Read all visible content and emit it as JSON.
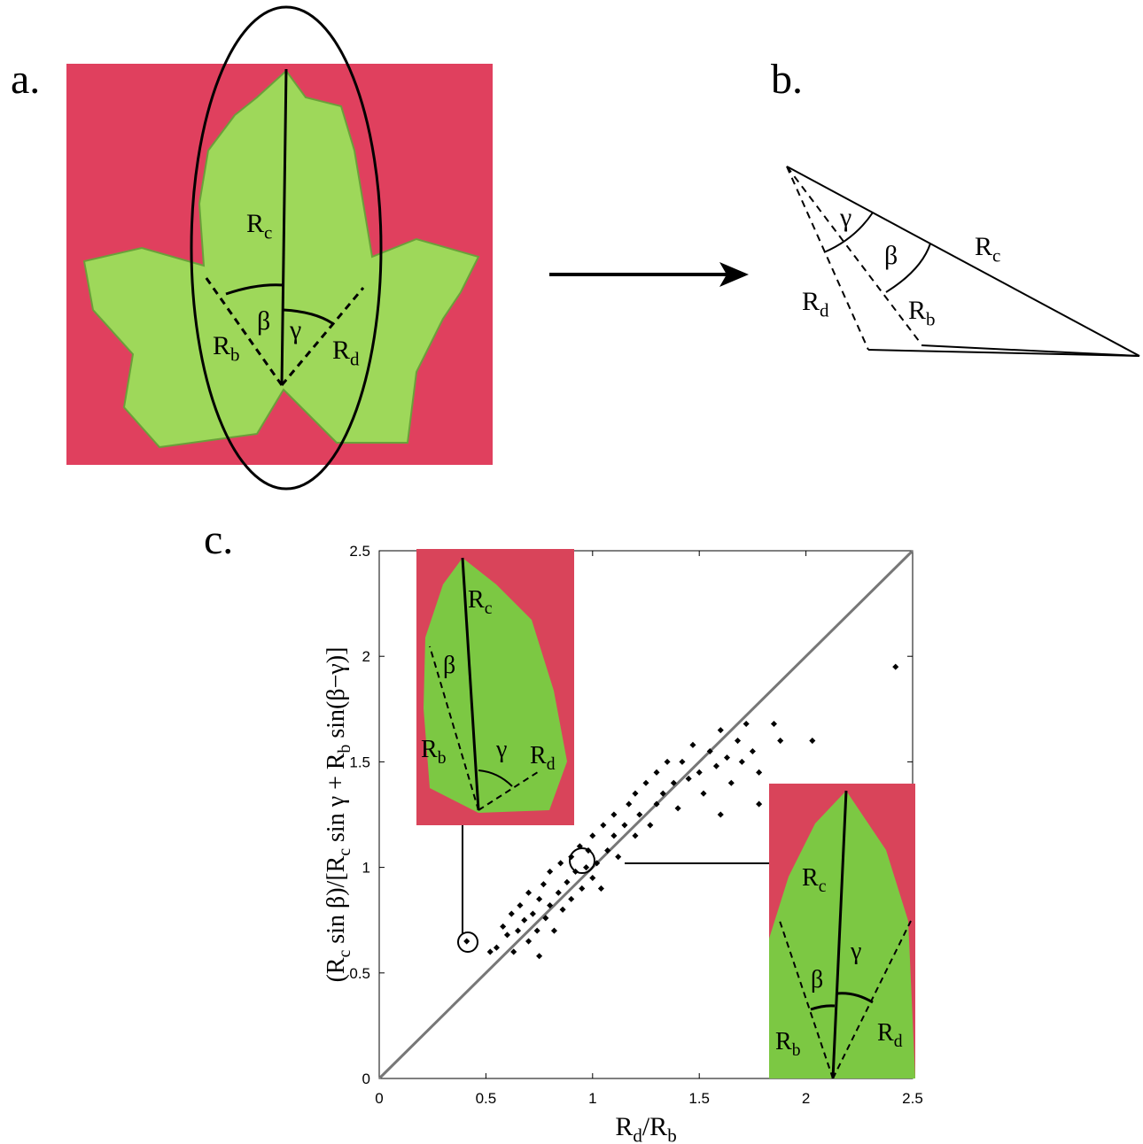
{
  "panel_labels": [
    "a.",
    "b.",
    "c."
  ],
  "panel_a": {
    "labels": [
      {
        "base": "R",
        "sub": "c"
      },
      {
        "base": "β"
      },
      {
        "base": "γ"
      },
      {
        "base": "R",
        "sub": "b"
      },
      {
        "base": "R",
        "sub": "d"
      }
    ]
  },
  "panel_b": {
    "labels": [
      {
        "base": "γ"
      },
      {
        "base": "β"
      },
      {
        "base": "R",
        "sub": "c"
      },
      {
        "base": "R",
        "sub": "d"
      },
      {
        "base": "R",
        "sub": "b"
      }
    ]
  },
  "inset_left": {
    "labels": [
      {
        "base": "R",
        "sub": "c"
      },
      {
        "base": "β"
      },
      {
        "base": "R",
        "sub": "b"
      },
      {
        "base": "γ"
      },
      {
        "base": "R",
        "sub": "d"
      }
    ]
  },
  "inset_right": {
    "labels": [
      {
        "base": "R",
        "sub": "c"
      },
      {
        "base": "γ"
      },
      {
        "base": "β"
      },
      {
        "base": "R",
        "sub": "b"
      },
      {
        "base": "R",
        "sub": "d"
      }
    ]
  },
  "chart_data": {
    "type": "scatter",
    "x_label_parts": [
      "R",
      "d",
      "/R",
      "b"
    ],
    "y_label_parts": [
      "(R",
      "c",
      " sin β)/[R",
      "c",
      " sin γ + R",
      "b",
      " sin(β−γ)]"
    ],
    "x": [
      0.55,
      0.58,
      0.6,
      0.62,
      0.63,
      0.65,
      0.66,
      0.68,
      0.7,
      0.7,
      0.72,
      0.74,
      0.75,
      0.77,
      0.78,
      0.8,
      0.8,
      0.82,
      0.84,
      0.85,
      0.86,
      0.88,
      0.9,
      0.9,
      0.92,
      0.94,
      0.95,
      0.97,
      0.98,
      1.0,
      1.0,
      1.02,
      1.04,
      1.05,
      1.07,
      1.1,
      1.1,
      1.12,
      1.15,
      1.17,
      1.2,
      1.2,
      1.22,
      1.25,
      1.27,
      1.3,
      1.3,
      1.33,
      1.35,
      1.38,
      1.4,
      1.42,
      1.45,
      1.47,
      1.5,
      1.52,
      1.55,
      1.58,
      1.6,
      1.63,
      1.65,
      1.68,
      1.7,
      1.72,
      1.75,
      1.78,
      1.78,
      1.85,
      1.88,
      2.03,
      2.42,
      0.52,
      0.41,
      1.6,
      0.75
    ],
    "values": [
      0.62,
      0.72,
      0.68,
      0.78,
      0.6,
      0.7,
      0.82,
      0.75,
      0.65,
      0.88,
      0.78,
      0.7,
      0.85,
      0.92,
      0.76,
      0.82,
      0.98,
      0.7,
      0.88,
      1.02,
      0.8,
      0.93,
      1.05,
      0.85,
      0.98,
      1.1,
      0.9,
      1.0,
      1.08,
      0.95,
      1.15,
      1.02,
      0.9,
      1.2,
      1.08,
      1.15,
      1.25,
      1.05,
      1.2,
      1.3,
      1.15,
      1.35,
      1.25,
      1.4,
      1.2,
      1.3,
      1.45,
      1.35,
      1.5,
      1.4,
      1.28,
      1.5,
      1.42,
      1.58,
      1.45,
      1.35,
      1.55,
      1.48,
      1.65,
      1.52,
      1.4,
      1.6,
      1.5,
      1.68,
      1.55,
      1.45,
      1.3,
      1.68,
      1.6,
      1.6,
      1.95,
      0.6,
      0.65,
      1.25,
      0.58
    ],
    "color": "#000000",
    "xlim": [
      0,
      2.5
    ],
    "ylim": [
      0,
      2.5
    ],
    "xticks": [
      0,
      0.5,
      1,
      1.5,
      2,
      2.5
    ],
    "yticks": [
      0,
      0.5,
      1,
      1.5,
      2,
      2.5
    ],
    "identity_line": true
  }
}
